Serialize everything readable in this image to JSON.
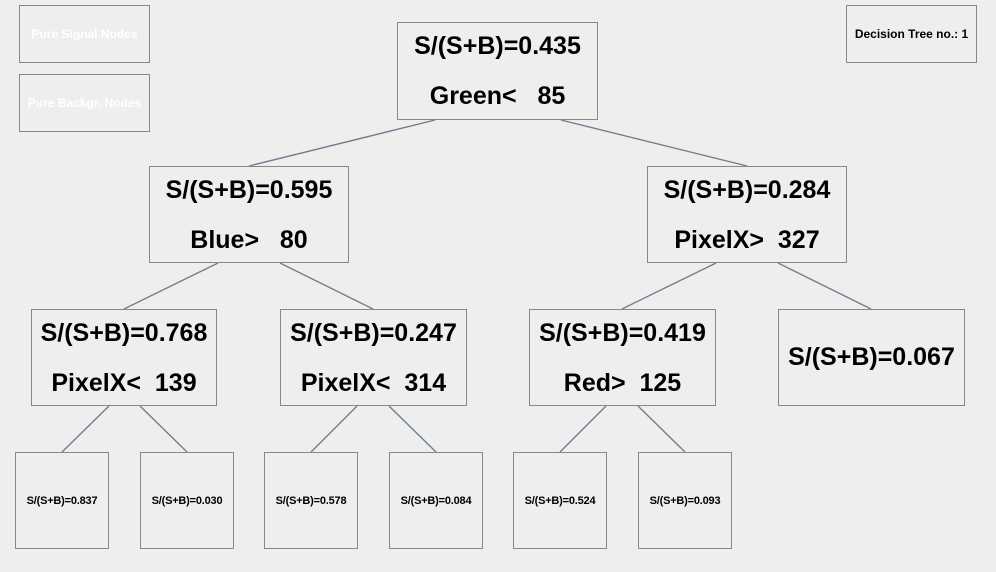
{
  "legend": {
    "signal": "Pure Signal Nodes",
    "background": "Pure Backgr. Nodes"
  },
  "title": "Decision Tree no.: 1",
  "colors": {
    "background": "#eeeeee",
    "border": "#888888",
    "edge": "#6f7f8f",
    "legend_text": "#ffffff"
  },
  "nodes": {
    "n0": {
      "purity": "S/(S+B)=0.435",
      "cut": "Green<   85"
    },
    "n1": {
      "purity": "S/(S+B)=0.595",
      "cut": "Blue>   80"
    },
    "n2": {
      "purity": "S/(S+B)=0.284",
      "cut": "PixelX>  327"
    },
    "n11": {
      "purity": "S/(S+B)=0.768",
      "cut": "PixelX<  139"
    },
    "n12": {
      "purity": "S/(S+B)=0.247",
      "cut": "PixelX<  314"
    },
    "n21": {
      "purity": "S/(S+B)=0.419",
      "cut": "Red>  125"
    },
    "n22": {
      "purity": "S/(S+B)=0.067"
    },
    "n111": {
      "purity": "S/(S+B)=0.837"
    },
    "n112": {
      "purity": "S/(S+B)=0.030"
    },
    "n121": {
      "purity": "S/(S+B)=0.578"
    },
    "n122": {
      "purity": "S/(S+B)=0.084"
    },
    "n211": {
      "purity": "S/(S+B)=0.524"
    },
    "n212": {
      "purity": "S/(S+B)=0.093"
    }
  }
}
